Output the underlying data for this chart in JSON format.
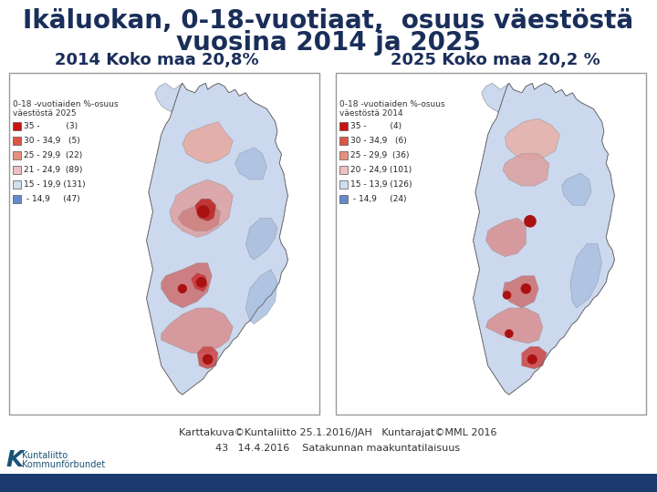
{
  "title_line1": "Ikäluokan, 0-18-vuotiaat,  osuus väestöstä",
  "title_line2": "vuosina 2014 ja 2025",
  "title_color": "#1a2e5a",
  "title_fontsize": 20,
  "subtitle_left": "2014 Koko maa 20,8%",
  "subtitle_right": "2025 Koko maa 20,2 %",
  "subtitle_color": "#1a2e5a",
  "subtitle_fontsize": 13,
  "bg_color": "#ffffff",
  "footer_line1": "Karttakuva©Kuntaliitto 25.1.2016/JAH   Kuntarajat©MML 2016",
  "footer_line2": "43   14.4.2016    Satakunnan maakuntatilaisuus",
  "footer_color": "#333333",
  "footer_fontsize": 8,
  "bottom_bar_color": "#1c3a6e",
  "left_legend_title": "0-18 -vuotiaiden %-osuus\nväestöstä 2025",
  "left_legend_items": [
    {
      "label": "35 -          (3)",
      "color": "#cc1111"
    },
    {
      "label": "30 - 34,9   (5)",
      "color": "#dd5544"
    },
    {
      "label": "25 - 29,9  (22)",
      "color": "#e89080"
    },
    {
      "label": "21 - 24,9  (89)",
      "color": "#f0bfbf"
    },
    {
      "label": "15 - 19,9 (131)",
      "color": "#d0dff0"
    },
    {
      "label": " - 14,9     (47)",
      "color": "#6688cc"
    }
  ],
  "right_legend_title": "0-18 -vuotiaiden %-osuus\nväestöstä 2014",
  "right_legend_items": [
    {
      "label": "35 -         (4)",
      "color": "#cc1111"
    },
    {
      "label": "30 - 34,9   (6)",
      "color": "#dd5544"
    },
    {
      "label": "25 - 29,9  (36)",
      "color": "#e89080"
    },
    {
      "label": "20 - 24,9 (101)",
      "color": "#f0bfbf"
    },
    {
      "label": "15 - 13,9 (126)",
      "color": "#d0dff0"
    },
    {
      "label": " - 14,9     (24)",
      "color": "#6688cc"
    }
  ],
  "map_bg": "#f0f0f0",
  "map_border": "#aaaaaa"
}
